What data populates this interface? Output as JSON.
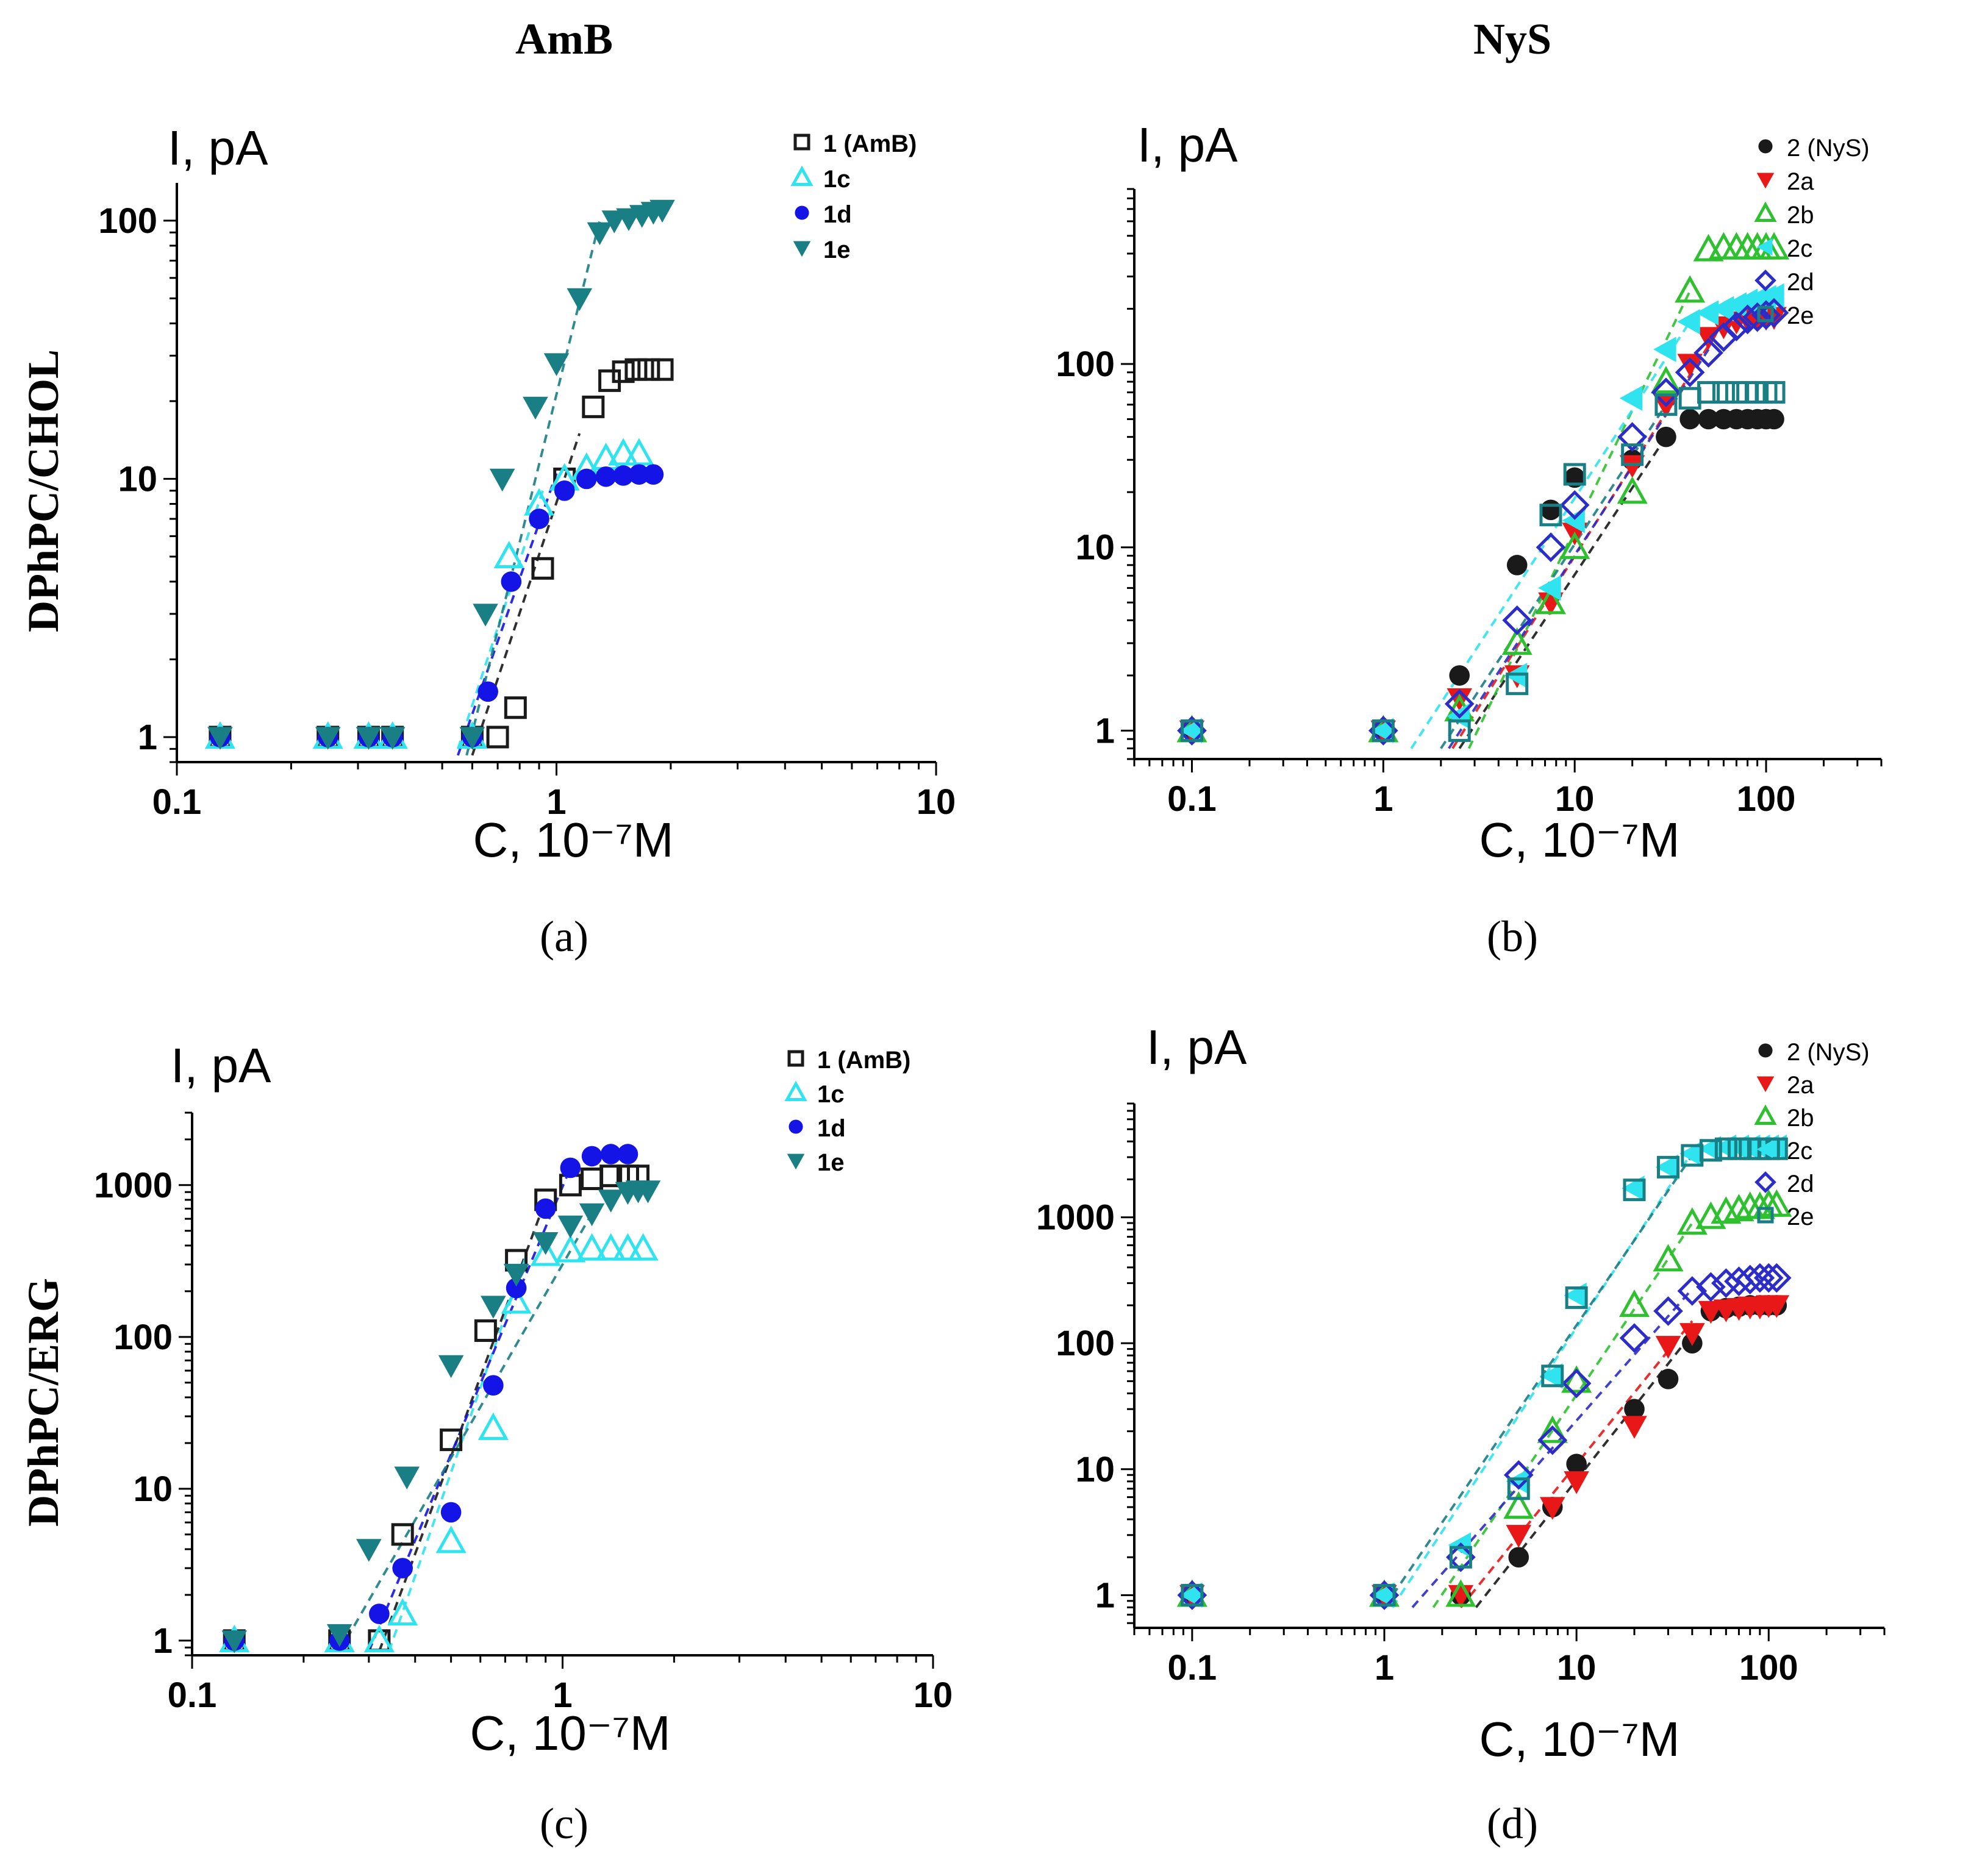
{
  "figure": {
    "column_titles": [
      "AmB",
      "NyS"
    ],
    "row_titles": [
      "DPhPC/CHOL",
      "DPhPC/ERG"
    ]
  },
  "colors": {
    "black": "#1a1a1a",
    "cyan": "#2fe3ef",
    "blue": "#1414e6",
    "teal": "#1a7f85",
    "red": "#e81818",
    "green": "#2fc02f",
    "navy": "#2c2cc8"
  },
  "chart_data": [
    {
      "id": "a",
      "panel_label": "(a)",
      "type": "scatter",
      "xscale": "log",
      "yscale": "log",
      "ylabel": "I, pA",
      "xlabel": "C, 10⁻⁷M",
      "xlim": [
        0.1,
        10
      ],
      "ylim": [
        0.8,
        140
      ],
      "xticks": [
        0.1,
        1,
        10
      ],
      "xticklabels": [
        "0.1",
        "1",
        "10"
      ],
      "yticks": [
        1,
        10,
        100
      ],
      "yticklabels": [
        "1",
        "10",
        "100"
      ],
      "legend": "top-right",
      "series": [
        {
          "name": "1 (AmB)",
          "marker": "square-open",
          "color": "black",
          "x": [
            0.13,
            0.25,
            0.32,
            0.37,
            0.6,
            0.7,
            0.78,
            0.92,
            1.05,
            1.25,
            1.38,
            1.5,
            1.62,
            1.75,
            1.9
          ],
          "y": [
            1,
            1,
            1,
            1,
            1,
            1,
            1.3,
            4.5,
            10,
            19,
            24,
            26,
            26.5,
            26.5,
            26.5
          ],
          "fit": [
            [
              0.6,
              0.85
            ],
            [
              1.15,
              15
            ]
          ]
        },
        {
          "name": "1c",
          "marker": "triangle-up-open",
          "color": "cyan",
          "x": [
            0.13,
            0.25,
            0.32,
            0.37,
            0.6,
            0.75,
            0.9,
            1.05,
            1.2,
            1.35,
            1.5,
            1.65
          ],
          "y": [
            1,
            1,
            1,
            1,
            1,
            5,
            8,
            10,
            11,
            12,
            12.5,
            12.5
          ],
          "fit": [
            [
              0.55,
              0.9
            ],
            [
              0.92,
              9
            ]
          ]
        },
        {
          "name": "1d",
          "marker": "circle-filled",
          "color": "blue",
          "x": [
            0.13,
            0.25,
            0.32,
            0.37,
            0.6,
            0.66,
            0.76,
            0.9,
            1.05,
            1.2,
            1.35,
            1.5,
            1.65,
            1.8
          ],
          "y": [
            1,
            1,
            1,
            1,
            1,
            1.5,
            4,
            7,
            9,
            10,
            10.2,
            10.3,
            10.4,
            10.4
          ],
          "fit": [
            [
              0.55,
              0.85
            ],
            [
              1.0,
              10.5
            ]
          ]
        },
        {
          "name": "1e",
          "marker": "triangle-down-filled",
          "color": "teal",
          "x": [
            0.13,
            0.25,
            0.32,
            0.37,
            0.6,
            0.65,
            0.72,
            0.88,
            1.0,
            1.15,
            1.3,
            1.42,
            1.55,
            1.68,
            1.8,
            1.9
          ],
          "y": [
            1,
            1,
            1,
            1,
            1,
            3,
            10,
            19,
            28,
            50,
            90,
            100,
            102,
            105,
            108,
            110
          ],
          "fit": [
            [
              0.58,
              0.85
            ],
            [
              1.3,
              100
            ]
          ]
        }
      ]
    },
    {
      "id": "b",
      "panel_label": "(b)",
      "type": "scatter",
      "xscale": "log",
      "yscale": "log",
      "ylabel": "I, pA",
      "xlabel": "C, 10⁻⁷M",
      "xlim": [
        0.05,
        400
      ],
      "ylim": [
        0.7,
        900
      ],
      "xticks": [
        0.1,
        1,
        10,
        100
      ],
      "xticklabels": [
        "0.1",
        "1",
        "10",
        "100"
      ],
      "yticks": [
        1,
        10,
        100
      ],
      "yticklabels": [
        "1",
        "10",
        "100"
      ],
      "legend": "top-right",
      "series": [
        {
          "name": "2 (NyS)",
          "marker": "circle-filled",
          "color": "black",
          "x": [
            0.1,
            1,
            2.5,
            5,
            7.5,
            10,
            20,
            30,
            40,
            50,
            60,
            70,
            80,
            90,
            100,
            110
          ],
          "y": [
            1,
            1,
            2,
            8,
            16,
            24,
            30,
            40,
            50,
            50,
            50,
            50,
            50,
            50,
            50,
            50
          ],
          "fit": [
            [
              2.5,
              0.8
            ],
            [
              30,
              40
            ]
          ]
        },
        {
          "name": "2a",
          "marker": "triangle-down-filled",
          "color": "red",
          "x": [
            0.1,
            1,
            2.5,
            5,
            7.5,
            10,
            20,
            30,
            40,
            50,
            60,
            70,
            80,
            90,
            100,
            110
          ],
          "y": [
            1,
            1,
            1.5,
            2,
            5,
            12,
            28,
            60,
            100,
            140,
            160,
            170,
            175,
            175,
            178,
            180
          ],
          "fit": [
            [
              2.3,
              0.8
            ],
            [
              60,
              170
            ]
          ]
        },
        {
          "name": "2b",
          "marker": "triangle-up-open",
          "color": "green",
          "x": [
            0.1,
            1,
            2.5,
            5,
            7.5,
            10,
            20,
            30,
            40,
            50,
            60,
            70,
            80,
            90,
            100,
            110
          ],
          "y": [
            1,
            1,
            1.3,
            3,
            5,
            10,
            20,
            80,
            250,
            420,
            430,
            430,
            430,
            430,
            430,
            430
          ],
          "fit": [
            [
              2.8,
              0.8
            ],
            [
              40,
              250
            ]
          ]
        },
        {
          "name": "2c",
          "marker": "triangle-left-filled",
          "color": "cyan",
          "x": [
            0.1,
            1,
            2.5,
            5,
            7.5,
            10,
            20,
            30,
            40,
            50,
            60,
            70,
            80,
            90,
            100,
            110
          ],
          "y": [
            1,
            1,
            1.2,
            2,
            6,
            14,
            65,
            120,
            170,
            190,
            200,
            210,
            220,
            225,
            230,
            235
          ],
          "fit": [
            [
              1.4,
              0.8
            ],
            [
              40,
              170
            ]
          ]
        },
        {
          "name": "2d",
          "marker": "diamond-open",
          "color": "navy",
          "x": [
            0.1,
            1,
            2.5,
            5,
            7.5,
            10,
            20,
            30,
            40,
            50,
            60,
            70,
            80,
            90,
            100,
            110
          ],
          "y": [
            1,
            1,
            1.4,
            4,
            10,
            17,
            40,
            70,
            90,
            115,
            140,
            160,
            175,
            180,
            185,
            190
          ],
          "fit": [
            [
              2.2,
              0.8
            ],
            [
              50,
              120
            ]
          ]
        },
        {
          "name": "2e",
          "marker": "square-open",
          "color": "teal",
          "x": [
            0.1,
            1,
            2.5,
            5,
            7.5,
            10,
            20,
            30,
            40,
            50,
            60,
            70,
            80,
            90,
            100,
            110
          ],
          "y": [
            1,
            1,
            1,
            1.8,
            15,
            25,
            32,
            60,
            65,
            70,
            70,
            70,
            70,
            70,
            70,
            70
          ],
          "fit": [
            [
              2.0,
              0.8
            ],
            [
              30,
              60
            ]
          ]
        }
      ]
    },
    {
      "id": "c",
      "panel_label": "(c)",
      "type": "scatter",
      "xscale": "log",
      "yscale": "log",
      "ylabel": "I, pA",
      "xlabel": "C, 10⁻⁷M",
      "xlim": [
        0.1,
        10
      ],
      "ylim": [
        0.8,
        3000
      ],
      "xticks": [
        0.1,
        1,
        10
      ],
      "xticklabels": [
        "0.1",
        "1",
        "10"
      ],
      "yticks": [
        1,
        10,
        100,
        1000
      ],
      "yticklabels": [
        "1",
        "10",
        "100",
        "1000"
      ],
      "legend": "top-right",
      "series": [
        {
          "name": "1 (AmB)",
          "marker": "square-open",
          "color": "black",
          "x": [
            0.13,
            0.25,
            0.32,
            0.37,
            0.5,
            0.62,
            0.75,
            0.9,
            1.05,
            1.2,
            1.35,
            1.5,
            1.6
          ],
          "y": [
            1,
            1,
            1,
            5,
            21,
            110,
            320,
            800,
            1000,
            1100,
            1150,
            1150,
            1150
          ],
          "fit": [
            [
              0.32,
              0.85
            ],
            [
              0.9,
              800
            ]
          ]
        },
        {
          "name": "1c",
          "marker": "triangle-up-open",
          "color": "cyan",
          "x": [
            0.13,
            0.25,
            0.32,
            0.37,
            0.5,
            0.65,
            0.75,
            0.9,
            1.05,
            1.2,
            1.35,
            1.5,
            1.65
          ],
          "y": [
            1,
            1,
            1,
            1.5,
            4.5,
            25,
            170,
            350,
            370,
            380,
            380,
            380,
            380
          ],
          "fit": [
            [
              0.34,
              0.85
            ],
            [
              0.8,
              350
            ]
          ]
        },
        {
          "name": "1d",
          "marker": "circle-filled",
          "color": "blue",
          "x": [
            0.13,
            0.25,
            0.32,
            0.37,
            0.5,
            0.65,
            0.75,
            0.9,
            1.05,
            1.2,
            1.35,
            1.5
          ],
          "y": [
            1,
            1,
            1.5,
            3,
            7,
            48,
            210,
            700,
            1300,
            1550,
            1600,
            1600
          ],
          "fit": [
            [
              0.3,
              0.85
            ],
            [
              1.05,
              1300
            ]
          ]
        },
        {
          "name": "1e",
          "marker": "triangle-down-filled",
          "color": "teal",
          "x": [
            0.13,
            0.25,
            0.3,
            0.38,
            0.5,
            0.65,
            0.75,
            0.9,
            1.05,
            1.2,
            1.35,
            1.5,
            1.6,
            1.7
          ],
          "y": [
            1,
            1.1,
            4,
            12,
            65,
            160,
            260,
            420,
            540,
            650,
            800,
            900,
            920,
            920
          ],
          "fit": [
            [
              0.25,
              0.85
            ],
            [
              1.2,
              650
            ]
          ]
        }
      ]
    },
    {
      "id": "d",
      "panel_label": "(d)",
      "type": "scatter",
      "xscale": "log",
      "yscale": "log",
      "ylabel": "I, pA",
      "xlabel": "C, 10⁻⁷M",
      "xlim": [
        0.05,
        400
      ],
      "ylim": [
        0.55,
        8000
      ],
      "xticks": [
        0.1,
        1,
        10,
        100
      ],
      "xticklabels": [
        "0.1",
        "1",
        "10",
        "100"
      ],
      "yticks": [
        1,
        10,
        100,
        1000
      ],
      "yticklabels": [
        "1",
        "10",
        "100",
        "1000"
      ],
      "legend": "top-right",
      "series": [
        {
          "name": "2 (NyS)",
          "marker": "circle-filled",
          "color": "black",
          "x": [
            0.1,
            1,
            2.5,
            5,
            7.5,
            10,
            20,
            30,
            40,
            50,
            60,
            70,
            80,
            90,
            100,
            110
          ],
          "y": [
            1,
            1,
            1,
            2,
            5,
            11,
            30,
            52,
            100,
            180,
            190,
            195,
            200,
            200,
            200,
            200
          ],
          "fit": [
            [
              3.0,
              0.8
            ],
            [
              40,
              120
            ]
          ]
        },
        {
          "name": "2a",
          "marker": "triangle-down-filled",
          "color": "red",
          "x": [
            0.1,
            1,
            2.5,
            5,
            7.5,
            10,
            20,
            30,
            40,
            50,
            60,
            70,
            80,
            90,
            100,
            110
          ],
          "y": [
            1,
            1,
            1,
            3,
            5,
            8,
            22,
            95,
            120,
            180,
            185,
            190,
            195,
            195,
            200,
            200
          ],
          "fit": [
            [
              2.5,
              0.8
            ],
            [
              40,
              150
            ]
          ]
        },
        {
          "name": "2b",
          "marker": "triangle-up-open",
          "color": "green",
          "x": [
            0.1,
            1,
            2.5,
            5,
            7.5,
            10,
            20,
            30,
            40,
            50,
            60,
            70,
            80,
            90,
            100,
            110
          ],
          "y": [
            1,
            1,
            1,
            5,
            20,
            50,
            200,
            460,
            900,
            1000,
            1100,
            1150,
            1200,
            1200,
            1250,
            1250
          ],
          "fit": [
            [
              1.8,
              0.8
            ],
            [
              40,
              900
            ]
          ]
        },
        {
          "name": "2c",
          "marker": "triangle-left-filled",
          "color": "cyan",
          "x": [
            0.1,
            1,
            2.5,
            5,
            7.5,
            10,
            20,
            30,
            40,
            50,
            60,
            70,
            80,
            90,
            100,
            110
          ],
          "y": [
            1,
            1,
            2.5,
            8,
            55,
            240,
            1700,
            2500,
            3200,
            3500,
            3600,
            3600,
            3600,
            3600,
            3600,
            3600
          ],
          "fit": [
            [
              1.1,
              0.8
            ],
            [
              40,
              3300
            ]
          ]
        },
        {
          "name": "2d",
          "marker": "diamond-open",
          "color": "navy",
          "x": [
            0.1,
            1,
            2.5,
            5,
            7.5,
            10,
            20,
            30,
            40,
            50,
            60,
            70,
            80,
            90,
            100,
            110
          ],
          "y": [
            1,
            1,
            2,
            9,
            17,
            48,
            110,
            180,
            260,
            280,
            300,
            310,
            320,
            330,
            330,
            330
          ],
          "fit": [
            [
              1.4,
              0.8
            ],
            [
              40,
              270
            ]
          ]
        },
        {
          "name": "2e",
          "marker": "square-open",
          "color": "teal",
          "x": [
            0.1,
            1,
            2.5,
            5,
            7.5,
            10,
            20,
            30,
            40,
            50,
            60,
            70,
            80,
            90,
            100,
            110
          ],
          "y": [
            1,
            1,
            2,
            7,
            55,
            230,
            1650,
            2500,
            3100,
            3400,
            3500,
            3500,
            3500,
            3500,
            3500,
            3500
          ],
          "fit": [
            [
              1.0,
              0.8
            ],
            [
              40,
              3100
            ]
          ]
        }
      ]
    }
  ]
}
